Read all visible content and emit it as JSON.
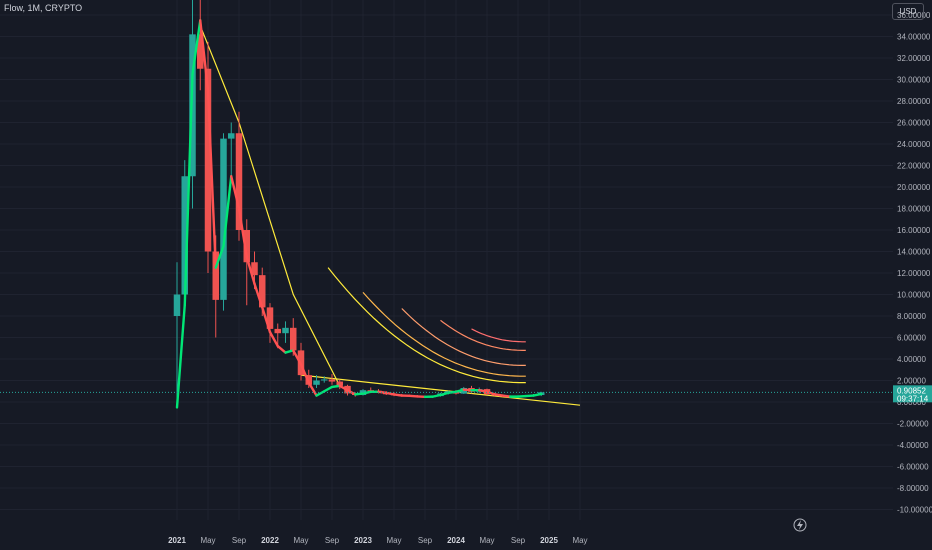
{
  "header": {
    "title": "Flow, 1M, CRYPTO",
    "currency_button": "USD"
  },
  "colors": {
    "background": "#161a25",
    "bull": "#26a69a",
    "bear": "#ef5350",
    "ma_up": "#00e676",
    "ma_down": "#ff5252",
    "trend": "#ffeb3b"
  },
  "chart_data": {
    "type": "candlestick",
    "title": "Flow, 1M, CRYPTO",
    "ylim": [
      -10.7,
      36.5
    ],
    "y_ticks": [
      -10,
      -8,
      -6,
      -4,
      -2,
      0,
      2,
      4,
      6,
      8,
      10,
      12,
      14,
      16,
      18,
      20,
      22,
      24,
      26,
      28,
      30,
      32,
      34,
      36
    ],
    "y_tick_labels": [
      "-10.00000",
      "-8.00000",
      "-6.00000",
      "-4.00000",
      "-2.00000",
      "0.00000",
      "2.00000",
      "4.00000",
      "6.00000",
      "8.00000",
      "10.00000",
      "12.00000",
      "14.00000",
      "16.00000",
      "18.00000",
      "20.00000",
      "22.00000",
      "24.00000",
      "26.00000",
      "28.00000",
      "30.00000",
      "32.00000",
      "34.00000",
      "36.00000"
    ],
    "x_ticks": [
      {
        "label": "2021",
        "month": 0,
        "bold": true
      },
      {
        "label": "May",
        "month": 4
      },
      {
        "label": "Sep",
        "month": 8
      },
      {
        "label": "2022",
        "month": 12,
        "bold": true
      },
      {
        "label": "May",
        "month": 16
      },
      {
        "label": "Sep",
        "month": 20
      },
      {
        "label": "2023",
        "month": 24,
        "bold": true
      },
      {
        "label": "May",
        "month": 28
      },
      {
        "label": "Sep",
        "month": 32
      },
      {
        "label": "2024",
        "month": 36,
        "bold": true
      },
      {
        "label": "May",
        "month": 40
      },
      {
        "label": "Sep",
        "month": 44
      },
      {
        "label": "2025",
        "month": 48,
        "bold": true
      },
      {
        "label": "May",
        "month": 52
      }
    ],
    "candles": [
      {
        "m": 0,
        "o": 8.0,
        "h": 13.0,
        "l": -0.5,
        "c": 10.0
      },
      {
        "m": 1,
        "o": 10.0,
        "h": 22.5,
        "l": 9.5,
        "c": 21.0
      },
      {
        "m": 2,
        "o": 21.0,
        "h": 43.0,
        "l": 18.0,
        "c": 34.2
      },
      {
        "m": 3,
        "o": 34.2,
        "h": 42.5,
        "l": 29.0,
        "c": 31.0
      },
      {
        "m": 4,
        "o": 31.0,
        "h": 33.5,
        "l": 12.0,
        "c": 14.0
      },
      {
        "m": 5,
        "o": 14.0,
        "h": 15.5,
        "l": 6.0,
        "c": 9.5
      },
      {
        "m": 6,
        "o": 9.5,
        "h": 25.0,
        "l": 8.5,
        "c": 24.5
      },
      {
        "m": 7,
        "o": 24.5,
        "h": 26.0,
        "l": 21.0,
        "c": 25.0
      },
      {
        "m": 8,
        "o": 25.0,
        "h": 27.0,
        "l": 15.0,
        "c": 16.0
      },
      {
        "m": 9,
        "o": 16.0,
        "h": 17.0,
        "l": 9.0,
        "c": 13.0
      },
      {
        "m": 10,
        "o": 13.0,
        "h": 14.0,
        "l": 10.5,
        "c": 11.8
      },
      {
        "m": 11,
        "o": 11.8,
        "h": 12.5,
        "l": 8.0,
        "c": 8.8
      },
      {
        "m": 12,
        "o": 8.8,
        "h": 9.2,
        "l": 5.5,
        "c": 6.8
      },
      {
        "m": 13,
        "o": 6.8,
        "h": 7.3,
        "l": 5.0,
        "c": 6.4
      },
      {
        "m": 14,
        "o": 6.4,
        "h": 7.5,
        "l": 5.5,
        "c": 6.9
      },
      {
        "m": 15,
        "o": 6.9,
        "h": 7.8,
        "l": 4.3,
        "c": 4.8
      },
      {
        "m": 16,
        "o": 4.8,
        "h": 5.5,
        "l": 2.0,
        "c": 2.5
      },
      {
        "m": 17,
        "o": 2.5,
        "h": 3.0,
        "l": 1.3,
        "c": 1.6
      },
      {
        "m": 18,
        "o": 1.6,
        "h": 2.5,
        "l": 1.3,
        "c": 2.0
      },
      {
        "m": 19,
        "o": 2.0,
        "h": 2.4,
        "l": 1.8,
        "c": 2.1
      },
      {
        "m": 20,
        "o": 2.1,
        "h": 2.6,
        "l": 1.6,
        "c": 1.9
      },
      {
        "m": 21,
        "o": 1.9,
        "h": 2.1,
        "l": 1.2,
        "c": 1.5
      },
      {
        "m": 22,
        "o": 1.5,
        "h": 1.6,
        "l": 0.6,
        "c": 0.8
      },
      {
        "m": 23,
        "o": 0.8,
        "h": 0.9,
        "l": 0.5,
        "c": 0.65
      },
      {
        "m": 24,
        "o": 0.65,
        "h": 1.2,
        "l": 0.6,
        "c": 1.1
      },
      {
        "m": 25,
        "o": 1.1,
        "h": 1.35,
        "l": 0.95,
        "c": 1.05
      },
      {
        "m": 26,
        "o": 1.05,
        "h": 1.2,
        "l": 0.8,
        "c": 0.9
      },
      {
        "m": 27,
        "o": 0.9,
        "h": 1.0,
        "l": 0.65,
        "c": 0.72
      },
      {
        "m": 28,
        "o": 0.72,
        "h": 0.9,
        "l": 0.55,
        "c": 0.62
      },
      {
        "m": 29,
        "o": 0.62,
        "h": 0.75,
        "l": 0.5,
        "c": 0.55
      },
      {
        "m": 30,
        "o": 0.55,
        "h": 0.7,
        "l": 0.48,
        "c": 0.6
      },
      {
        "m": 31,
        "o": 0.6,
        "h": 0.65,
        "l": 0.45,
        "c": 0.5
      },
      {
        "m": 32,
        "o": 0.5,
        "h": 0.55,
        "l": 0.4,
        "c": 0.45
      },
      {
        "m": 33,
        "o": 0.45,
        "h": 0.6,
        "l": 0.4,
        "c": 0.55
      },
      {
        "m": 34,
        "o": 0.55,
        "h": 0.85,
        "l": 0.5,
        "c": 0.8
      },
      {
        "m": 35,
        "o": 0.8,
        "h": 1.05,
        "l": 0.7,
        "c": 1.0
      },
      {
        "m": 36,
        "o": 1.0,
        "h": 1.1,
        "l": 0.7,
        "c": 0.78
      },
      {
        "m": 37,
        "o": 0.78,
        "h": 1.4,
        "l": 0.75,
        "c": 1.3
      },
      {
        "m": 38,
        "o": 1.3,
        "h": 1.5,
        "l": 0.8,
        "c": 0.95
      },
      {
        "m": 39,
        "o": 0.95,
        "h": 1.35,
        "l": 0.85,
        "c": 1.2
      },
      {
        "m": 40,
        "o": 1.2,
        "h": 1.25,
        "l": 0.65,
        "c": 0.72
      },
      {
        "m": 41,
        "o": 0.72,
        "h": 0.85,
        "l": 0.55,
        "c": 0.6
      },
      {
        "m": 42,
        "o": 0.6,
        "h": 0.7,
        "l": 0.48,
        "c": 0.52
      },
      {
        "m": 43,
        "o": 0.52,
        "h": 0.6,
        "l": 0.4,
        "c": 0.45
      },
      {
        "m": 44,
        "o": 0.45,
        "h": 0.62,
        "l": 0.38,
        "c": 0.55
      },
      {
        "m": 45,
        "o": 0.55,
        "h": 0.65,
        "l": 0.5,
        "c": 0.58
      },
      {
        "m": 46,
        "o": 0.58,
        "h": 0.75,
        "l": 0.5,
        "c": 0.65
      },
      {
        "m": 47,
        "o": 0.65,
        "h": 0.95,
        "l": 0.55,
        "c": 0.9
      }
    ],
    "moving_average": [
      [
        0,
        -0.5
      ],
      [
        1,
        9.0
      ],
      [
        2,
        30.5
      ],
      [
        3,
        35.5
      ],
      [
        4,
        29.0
      ],
      [
        5,
        12.5
      ],
      [
        6,
        14.5
      ],
      [
        7,
        21.0
      ],
      [
        8,
        18.0
      ],
      [
        9,
        13.5
      ],
      [
        10,
        11.0
      ],
      [
        11,
        8.8
      ],
      [
        12,
        6.5
      ],
      [
        13,
        5.2
      ],
      [
        14,
        4.6
      ],
      [
        15,
        4.8
      ],
      [
        16,
        3.5
      ],
      [
        17,
        1.8
      ],
      [
        18,
        0.6
      ],
      [
        19,
        1.0
      ],
      [
        20,
        1.4
      ],
      [
        21,
        1.5
      ],
      [
        22,
        1.1
      ],
      [
        23,
        0.7
      ],
      [
        24,
        0.8
      ],
      [
        25,
        0.95
      ],
      [
        26,
        0.95
      ],
      [
        27,
        0.85
      ],
      [
        28,
        0.7
      ],
      [
        29,
        0.6
      ],
      [
        30,
        0.58
      ],
      [
        31,
        0.52
      ],
      [
        32,
        0.48
      ],
      [
        33,
        0.5
      ],
      [
        34,
        0.65
      ],
      [
        35,
        0.85
      ],
      [
        36,
        0.95
      ],
      [
        37,
        1.15
      ],
      [
        38,
        1.1
      ],
      [
        39,
        1.1
      ],
      [
        40,
        0.95
      ],
      [
        41,
        0.72
      ],
      [
        42,
        0.6
      ],
      [
        43,
        0.5
      ],
      [
        44,
        0.5
      ],
      [
        45,
        0.55
      ],
      [
        46,
        0.6
      ],
      [
        47,
        0.75
      ]
    ],
    "trendlines": [
      {
        "name": "trend-main",
        "color": "#ffeb3b",
        "points": [
          [
            3,
            35.0
          ],
          [
            8,
            26.0
          ],
          [
            15,
            10.0
          ],
          [
            21,
            1.5
          ]
        ]
      },
      {
        "name": "trend-flat",
        "color": "#ffeb3b",
        "points": [
          [
            16,
            2.5
          ],
          [
            52,
            -0.3
          ]
        ]
      }
    ],
    "fan_curves": [
      {
        "color": "#ffeb3b",
        "x0": 19.5,
        "x1": 45,
        "y0": 12.5,
        "y1": 1.8
      },
      {
        "color": "#ffb74d",
        "x0": 24,
        "x1": 45,
        "y0": 10.2,
        "y1": 2.4
      },
      {
        "color": "#ff9e6d",
        "x0": 29,
        "x1": 45,
        "y0": 8.7,
        "y1": 3.4
      },
      {
        "color": "#ff8a65",
        "x0": 34,
        "x1": 45,
        "y0": 7.6,
        "y1": 4.8
      },
      {
        "color": "#ff6e6e",
        "x0": 38,
        "x1": 45,
        "y0": 6.8,
        "y1": 5.6
      }
    ],
    "last_price": 0.9,
    "price_tag": "0.90852",
    "countdown": "09:37:14"
  }
}
